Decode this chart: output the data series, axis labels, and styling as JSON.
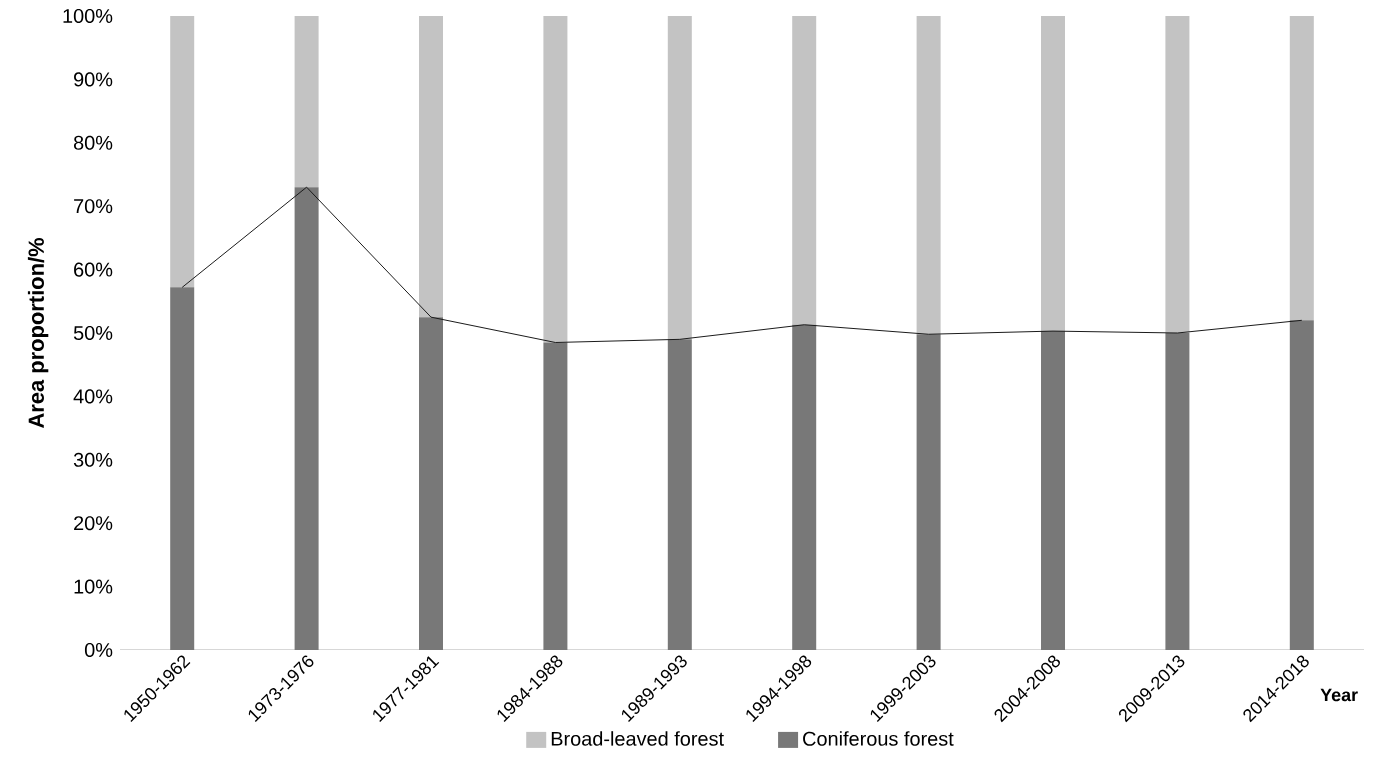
{
  "chart_data": {
    "type": "bar",
    "stacked": true,
    "ylabel": "Area proportion/%",
    "xlabel": "Year",
    "categories": [
      "1950-1962",
      "1973-1976",
      "1977-1981",
      "1984-1988",
      "1989-1993",
      "1994-1998",
      "1999-2003",
      "2004-2008",
      "2009-2013",
      "2014-2018"
    ],
    "series": [
      {
        "name": "Coniferous forest",
        "color": "#787878",
        "values": [
          57.2,
          73,
          52.5,
          48.5,
          49,
          51.3,
          49.8,
          50.3,
          50,
          52
        ]
      },
      {
        "name": "Broad-leaved forest",
        "color": "#c3c3c3",
        "values": [
          42.8,
          27,
          47.5,
          51.5,
          51,
          48.7,
          50.2,
          49.7,
          50,
          48
        ]
      },
      {
        "type": "line",
        "color": "#1a1a1a",
        "values": [
          57.2,
          73,
          52.5,
          48.5,
          49,
          51.3,
          49.8,
          50.3,
          50,
          52
        ]
      }
    ],
    "ylim": [
      0,
      100
    ],
    "yticks": [
      {
        "value": 0,
        "label": "0%"
      },
      {
        "value": 10,
        "label": "10%"
      },
      {
        "value": 20,
        "label": "20%"
      },
      {
        "value": 30,
        "label": "30%"
      },
      {
        "value": 40,
        "label": "40%"
      },
      {
        "value": 50,
        "label": "50%"
      },
      {
        "value": 60,
        "label": "60%"
      },
      {
        "value": 70,
        "label": "70%"
      },
      {
        "value": 80,
        "label": "80%"
      },
      {
        "value": 90,
        "label": "90%"
      },
      {
        "value": 100,
        "label": "100%"
      }
    ],
    "legend": "bottom",
    "grid": false
  }
}
